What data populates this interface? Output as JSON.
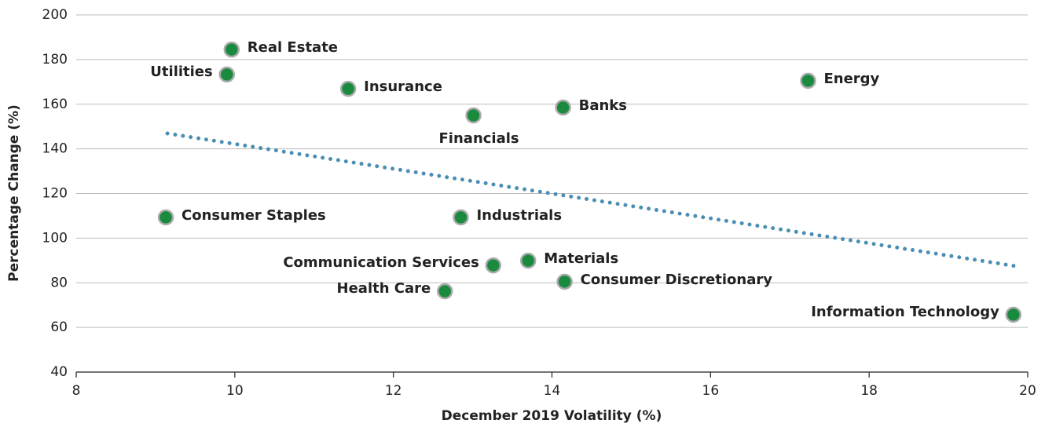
{
  "chart_data": {
    "type": "scatter",
    "xlabel": "December 2019 Volatility (%)",
    "ylabel": "Percentage Change (%)",
    "series": [
      {
        "color": "#1a8a3f",
        "labels": [
          "Real Estate",
          "Utilities",
          "Insurance",
          "Financials",
          "Banks",
          "Energy",
          "Consumer Staples",
          "Industrials",
          "Communication Services",
          "Materials",
          "Consumer Discretionary",
          "Health Care",
          "Information Technology"
        ],
        "x": [
          9.96,
          9.9,
          11.43,
          13.01,
          14.14,
          17.23,
          9.13,
          12.85,
          13.26,
          13.7,
          14.16,
          12.65,
          19.82
        ],
        "values": [
          184.5,
          173.3,
          166.9,
          155,
          158.5,
          170.5,
          109.3,
          109.3,
          87.8,
          89.9,
          80.5,
          76.2,
          65.7
        ]
      }
    ],
    "trendline": {
      "color": "#4a8db5",
      "x": [
        9.15,
        19.84
      ],
      "values": [
        146.9,
        87.5
      ]
    },
    "xlim": [
      8,
      20
    ],
    "xticks": [
      8,
      10,
      12,
      14,
      16,
      18,
      20
    ],
    "ylim": [
      40,
      200
    ],
    "yticks": [
      40,
      60,
      80,
      100,
      120,
      140,
      160,
      180,
      200
    ],
    "grid": true
  }
}
